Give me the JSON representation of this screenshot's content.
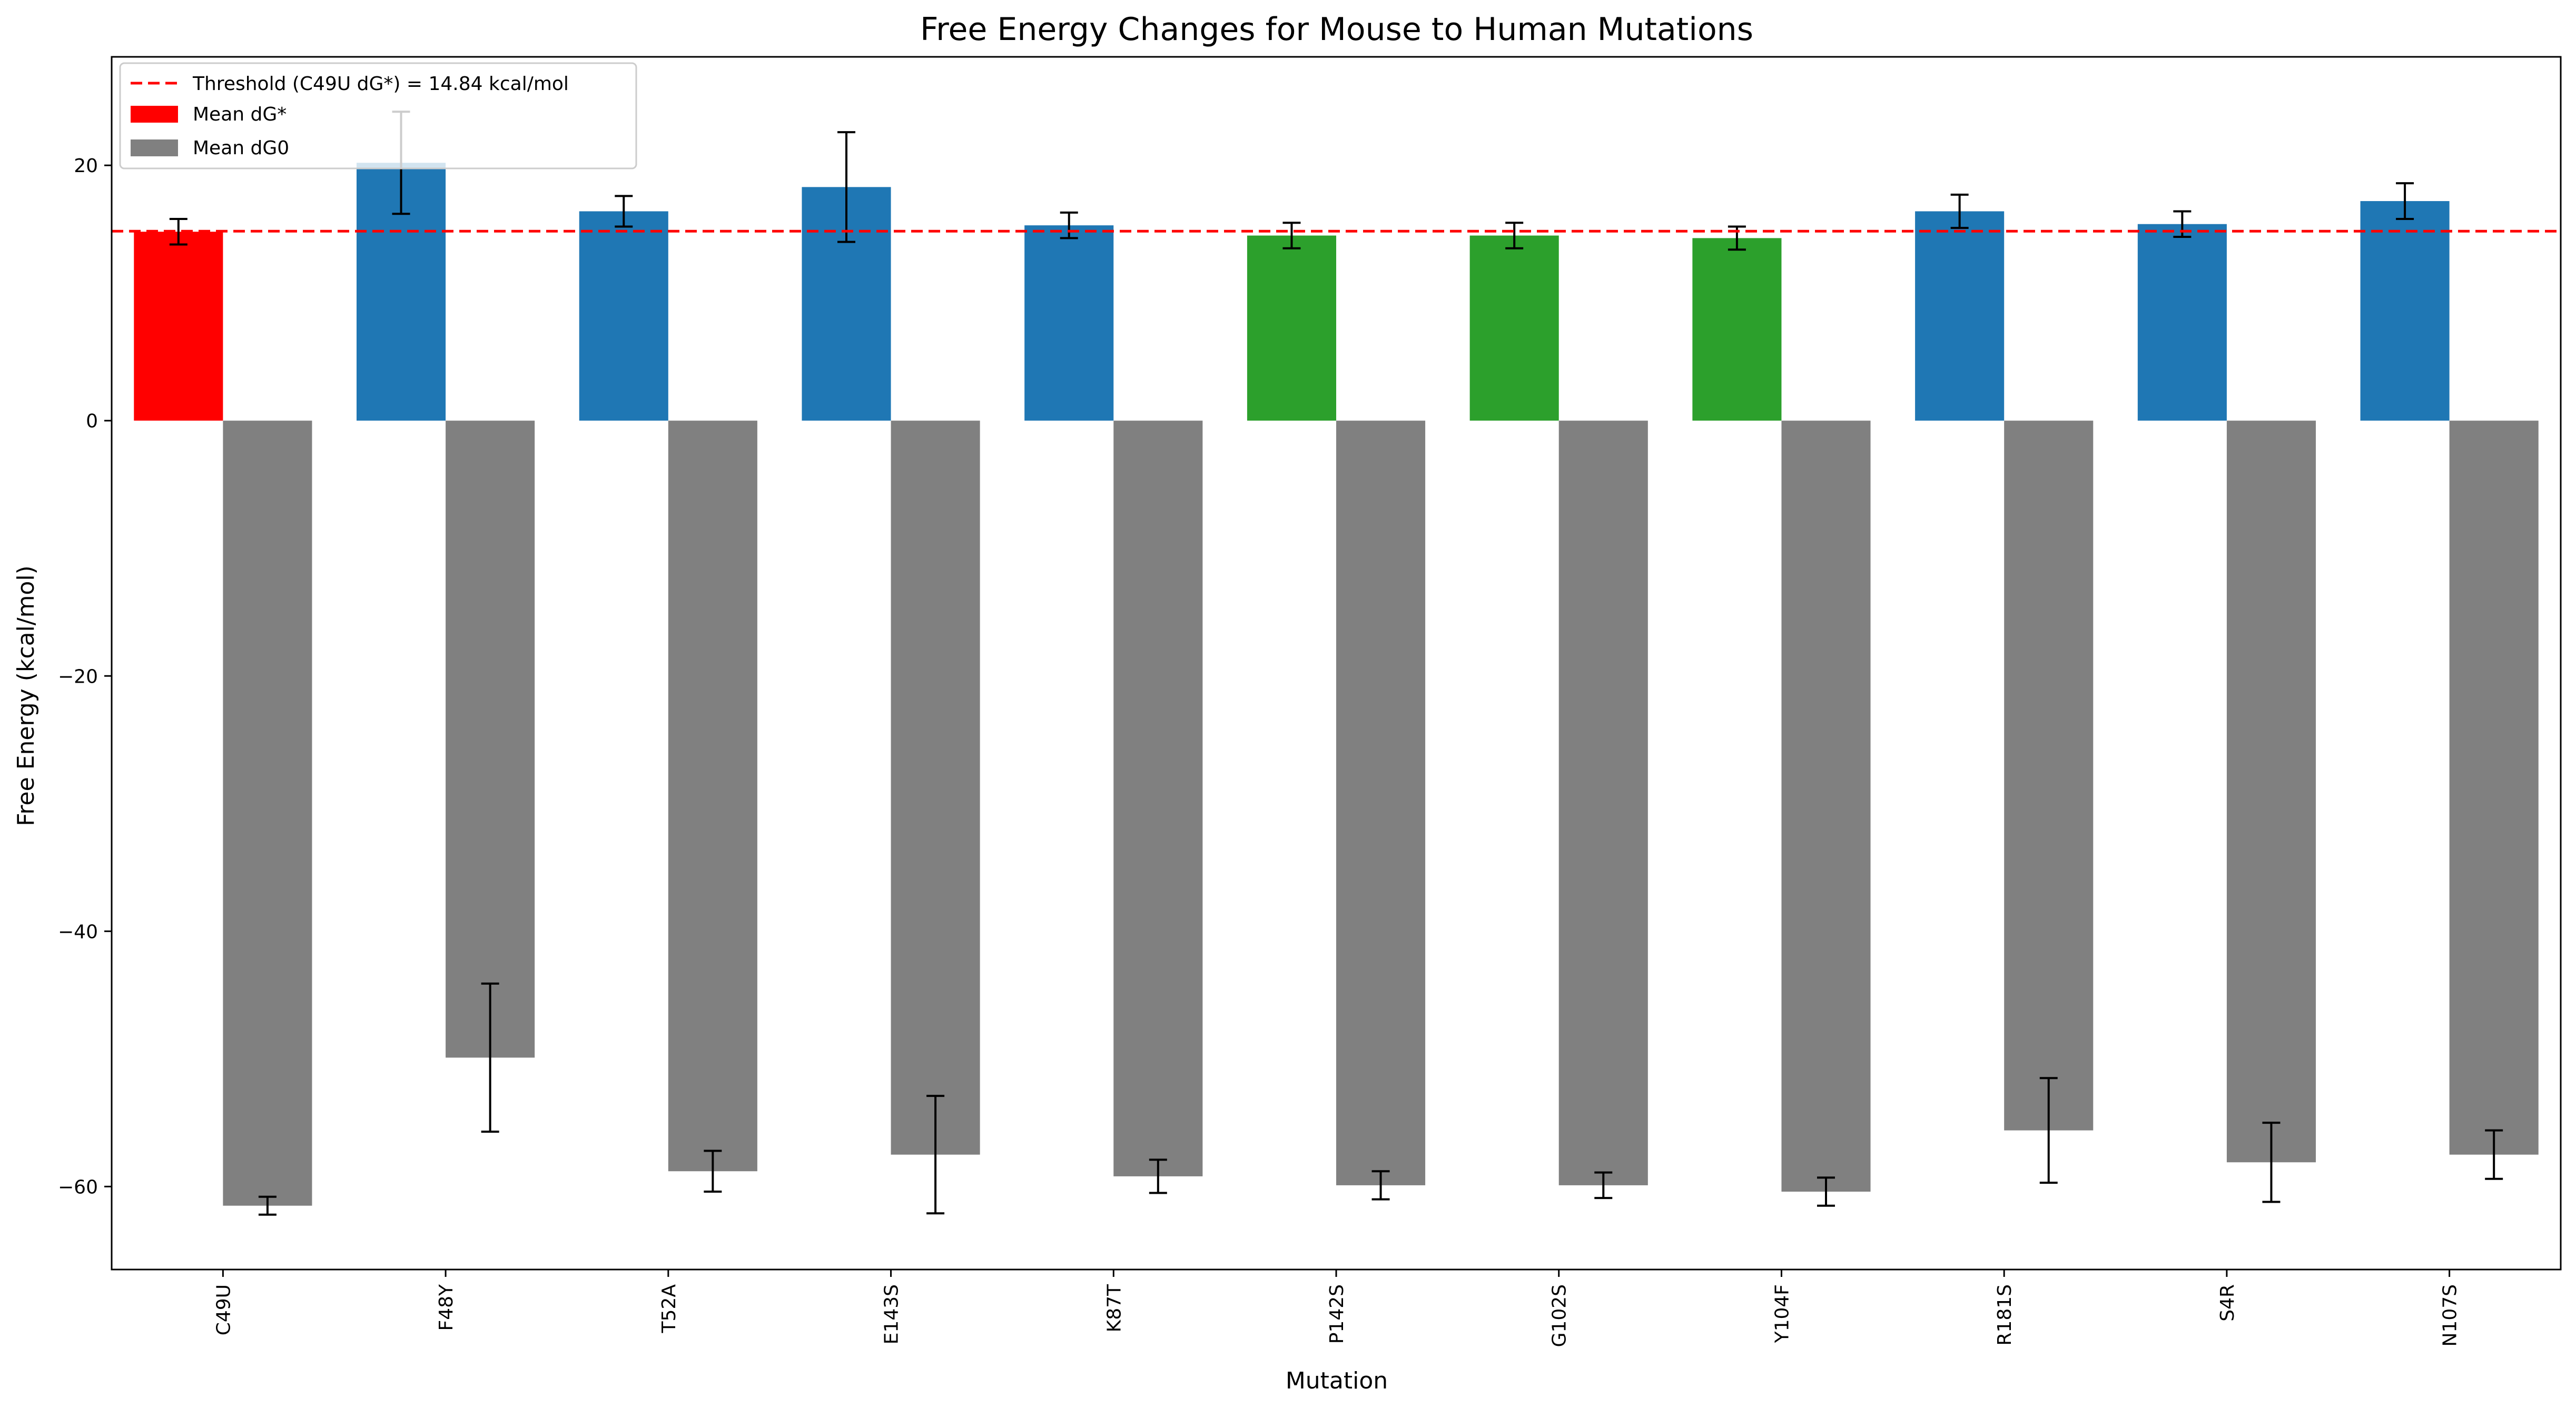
{
  "chart_data": {
    "type": "bar",
    "title": "Free Energy Changes for Mouse to Human Mutations",
    "xlabel": "Mutation",
    "ylabel": "Free Energy (kcal/mol)",
    "ylim": [
      -66.5,
      28.5
    ],
    "yticks": [
      -60,
      -40,
      -20,
      0,
      20
    ],
    "grid": false,
    "legend_position": "top-left",
    "categories": [
      "C49U",
      "F48Y",
      "T52A",
      "E143S",
      "K87T",
      "P142S",
      "G102S",
      "Y104F",
      "R181S",
      "S4R",
      "N107S"
    ],
    "series": [
      {
        "name": "Mean dG*",
        "values": [
          14.8,
          20.2,
          16.4,
          18.3,
          15.3,
          14.5,
          14.5,
          14.3,
          16.4,
          15.4,
          17.2
        ],
        "errors": [
          1.0,
          4.0,
          1.2,
          4.3,
          1.0,
          1.0,
          1.0,
          0.9,
          1.3,
          1.0,
          1.4
        ],
        "colors": [
          "#ff0000",
          "#1f77b4",
          "#1f77b4",
          "#1f77b4",
          "#1f77b4",
          "#2ca02c",
          "#2ca02c",
          "#2ca02c",
          "#1f77b4",
          "#1f77b4",
          "#1f77b4"
        ]
      },
      {
        "name": "Mean dG0",
        "values": [
          -61.5,
          -49.9,
          -58.8,
          -57.5,
          -59.2,
          -59.9,
          -59.9,
          -60.4,
          -55.6,
          -58.1,
          -57.5
        ],
        "errors": [
          0.7,
          5.8,
          1.6,
          4.6,
          1.3,
          1.1,
          1.0,
          1.1,
          4.1,
          3.1,
          1.9
        ],
        "color": "#808080"
      }
    ],
    "threshold": {
      "label": "Threshold (C49U dG*) = 14.84 kcal/mol",
      "value": 14.84,
      "color": "#ff0000"
    }
  }
}
